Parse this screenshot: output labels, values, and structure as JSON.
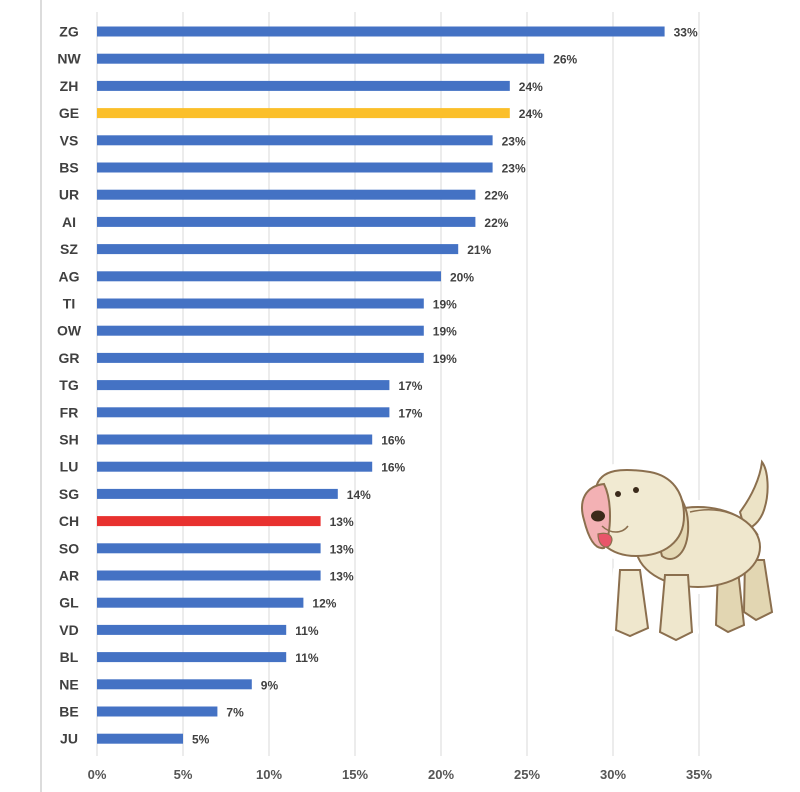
{
  "chart_data": {
    "type": "bar",
    "orientation": "horizontal",
    "categories": [
      "ZG",
      "NW",
      "ZH",
      "GE",
      "VS",
      "BS",
      "UR",
      "AI",
      "SZ",
      "AG",
      "TI",
      "OW",
      "GR",
      "TG",
      "FR",
      "SH",
      "LU",
      "SG",
      "CH",
      "SO",
      "AR",
      "GL",
      "VD",
      "BL",
      "NE",
      "BE",
      "JU"
    ],
    "values": [
      33,
      26,
      24,
      24,
      23,
      23,
      22,
      22,
      21,
      20,
      19,
      19,
      19,
      17,
      17,
      16,
      16,
      14,
      13,
      13,
      13,
      12,
      11,
      11,
      9,
      7,
      5
    ],
    "value_labels": [
      "33%",
      "26%",
      "24%",
      "24%",
      "23%",
      "23%",
      "22%",
      "22%",
      "21%",
      "20%",
      "19%",
      "19%",
      "19%",
      "17%",
      "17%",
      "16%",
      "16%",
      "14%",
      "13%",
      "13%",
      "13%",
      "12%",
      "11%",
      "11%",
      "9%",
      "7%",
      "5%"
    ],
    "highlight": {
      "GE": "#FBBF2A",
      "CH": "#E8312F"
    },
    "bar_color": "#4472C4",
    "xlim": [
      0,
      35
    ],
    "x_ticks": [
      0,
      5,
      10,
      15,
      20,
      25,
      30,
      35
    ],
    "x_tick_labels": [
      "0%",
      "5%",
      "10%",
      "15%",
      "20%",
      "25%",
      "30%",
      "35%"
    ],
    "grid": "vertical",
    "legend": "none",
    "title": "",
    "xlabel": "",
    "ylabel": ""
  },
  "decoration": {
    "icon": "dog-sticker-icon"
  }
}
